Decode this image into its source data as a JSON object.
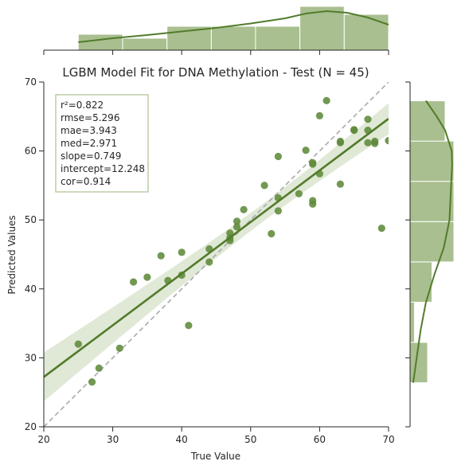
{
  "chart_data": {
    "type": "scatter",
    "title": "LGBM Model Fit for DNA Methylation - Test (N = 45)",
    "xlabel": "True Value",
    "ylabel": "Predicted Values",
    "xlim": [
      20,
      70
    ],
    "ylim": [
      20,
      70
    ],
    "xticks": [
      20,
      30,
      40,
      50,
      60,
      70
    ],
    "yticks": [
      20,
      30,
      40,
      50,
      60,
      70
    ],
    "grid": false,
    "colors": {
      "points": "#5e8a3a",
      "regression_line": "#527c2c",
      "confidence_band": "#d5e0c8",
      "identity_line": "#aaaaaa",
      "histogram": "#a9bf8f",
      "kde": "#527c2c",
      "stats_box_border": "#a9c28e"
    },
    "stats": [
      "r²=0.822",
      "rmse=5.296",
      "mae=3.943",
      "med=2.971",
      "slope=0.749",
      "intercept=12.248",
      "cor=0.914"
    ],
    "regression": {
      "slope": 0.749,
      "intercept": 12.248
    },
    "points": [
      [
        25,
        32
      ],
      [
        27,
        26.5
      ],
      [
        28,
        28.5
      ],
      [
        31,
        31.4
      ],
      [
        33,
        41
      ],
      [
        35,
        41.7
      ],
      [
        37,
        44.8
      ],
      [
        38,
        41.2
      ],
      [
        40,
        42
      ],
      [
        40,
        45.3
      ],
      [
        41,
        34.7
      ],
      [
        44,
        43.9
      ],
      [
        44,
        45.8
      ],
      [
        47,
        47
      ],
      [
        47,
        47.4
      ],
      [
        47,
        48.1
      ],
      [
        48,
        49
      ],
      [
        48,
        49.8
      ],
      [
        49,
        51.5
      ],
      [
        52,
        55
      ],
      [
        53,
        48
      ],
      [
        54,
        51.3
      ],
      [
        54,
        53.2
      ],
      [
        54,
        59.2
      ],
      [
        57,
        53.8
      ],
      [
        58,
        60.1
      ],
      [
        59,
        52.3
      ],
      [
        59,
        52.8
      ],
      [
        59,
        58.1
      ],
      [
        59,
        58.3
      ],
      [
        60,
        56.7
      ],
      [
        60,
        65.1
      ],
      [
        61,
        67.3
      ],
      [
        63,
        55.2
      ],
      [
        63,
        61.2
      ],
      [
        63,
        61.4
      ],
      [
        65,
        63
      ],
      [
        65,
        63.1
      ],
      [
        67,
        61.2
      ],
      [
        67,
        63
      ],
      [
        67,
        64.6
      ],
      [
        68,
        61.1
      ],
      [
        68,
        61.4
      ],
      [
        69,
        48.8
      ],
      [
        70,
        61.5
      ]
    ],
    "marginal_x": {
      "bins": [
        [
          25,
          31.43
        ],
        [
          31.43,
          37.86
        ],
        [
          37.86,
          44.29
        ],
        [
          44.29,
          50.71
        ],
        [
          50.71,
          57.14
        ],
        [
          57.14,
          63.57
        ],
        [
          63.57,
          70
        ]
      ],
      "counts": [
        4,
        3,
        6,
        6,
        6,
        11,
        9
      ],
      "kde": [
        [
          25,
          2.0
        ],
        [
          30,
          3.0
        ],
        [
          35,
          3.8
        ],
        [
          40,
          4.7
        ],
        [
          45,
          5.6
        ],
        [
          50,
          6.7
        ],
        [
          55,
          8.0
        ],
        [
          58,
          9.2
        ],
        [
          61,
          9.8
        ],
        [
          64,
          9.4
        ],
        [
          67,
          8.2
        ],
        [
          70,
          6.4
        ]
      ]
    },
    "marginal_y": {
      "bins": [
        [
          26.4,
          32.24
        ],
        [
          32.24,
          38.08
        ],
        [
          38.08,
          43.92
        ],
        [
          43.92,
          49.76
        ],
        [
          49.76,
          55.6
        ],
        [
          55.6,
          61.44
        ],
        [
          61.44,
          67.28
        ]
      ],
      "counts": [
        4,
        1,
        5,
        10,
        10,
        10,
        8
      ],
      "kde": [
        [
          26.4,
          0.7
        ],
        [
          30,
          1.5
        ],
        [
          34,
          2.4
        ],
        [
          38,
          3.6
        ],
        [
          42,
          5.5
        ],
        [
          46,
          7.7
        ],
        [
          50,
          9.0
        ],
        [
          54,
          9.3
        ],
        [
          58,
          9.6
        ],
        [
          60,
          9.5
        ],
        [
          63,
          8.0
        ],
        [
          65,
          6.1
        ],
        [
          67.3,
          3.6
        ]
      ]
    }
  }
}
